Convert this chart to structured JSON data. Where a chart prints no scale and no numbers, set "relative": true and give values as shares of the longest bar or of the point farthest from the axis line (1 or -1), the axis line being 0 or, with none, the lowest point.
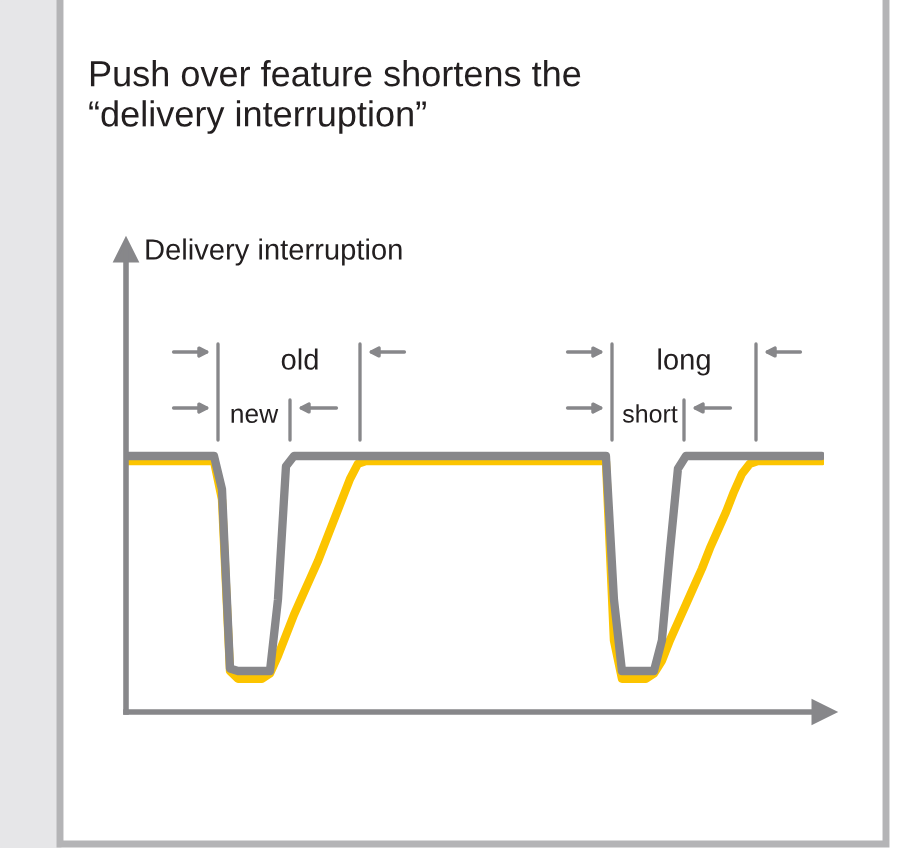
{
  "chart_data": {
    "type": "line",
    "relative": true,
    "legend": false,
    "marker": "none",
    "line_style": "solid",
    "title": "Push over feature shortens the\n“delivery interruption”",
    "annotations": [
      "Delivery interruption",
      "old",
      "new",
      "long",
      "short"
    ],
    "categories": [
      null,
      null,
      null,
      null,
      null,
      null,
      null,
      null,
      null,
      null,
      null,
      null,
      null,
      null,
      null,
      null,
      null,
      null,
      null,
      null,
      null,
      null,
      null,
      null,
      null,
      null,
      null,
      null,
      null,
      null,
      null,
      null,
      null,
      null,
      null,
      null,
      null,
      null,
      null,
      null,
      null,
      null,
      null,
      null,
      null,
      null,
      null,
      null,
      null,
      null,
      null,
      null,
      null,
      null,
      null,
      null,
      null,
      null,
      null,
      null,
      null,
      null,
      null,
      null,
      null,
      null,
      null,
      null,
      null,
      null,
      null,
      null,
      null,
      null,
      null,
      null,
      null,
      null,
      null,
      null,
      null,
      null,
      null,
      null,
      null,
      null,
      null,
      null
    ],
    "series": [
      {
        "color": "#fcc400",
        "values": [
          0.98,
          0.98,
          0.98,
          0.98,
          0.98,
          0.98,
          0.98,
          0.98,
          0.98,
          0.98,
          0.98,
          0.98,
          0.83,
          0.16,
          0.13,
          0.13,
          0.13,
          0.13,
          0.15,
          0.22,
          0.3,
          0.38,
          0.45,
          0.52,
          0.59,
          0.67,
          0.75,
          0.83,
          0.91,
          0.97,
          0.98,
          0.98,
          0.98,
          0.98,
          0.98,
          0.98,
          0.98,
          0.98,
          0.98,
          0.98,
          0.98,
          0.98,
          0.98,
          0.98,
          0.98,
          0.98,
          0.98,
          0.98,
          0.98,
          0.98,
          0.98,
          0.98,
          0.98,
          0.98,
          0.98,
          0.98,
          0.98,
          0.98,
          0.98,
          0.98,
          0.98,
          0.28,
          0.13,
          0.13,
          0.13,
          0.13,
          0.15,
          0.2,
          0.28,
          0.35,
          0.42,
          0.49,
          0.56,
          0.64,
          0.71,
          0.78,
          0.86,
          0.93,
          0.97,
          0.98,
          0.98,
          0.98,
          0.98,
          0.98,
          0.98,
          0.98,
          0.98,
          0.98
        ]
      },
      {
        "color": "#87878a",
        "values": [
          1.0,
          1.0,
          1.0,
          1.0,
          1.0,
          1.0,
          1.0,
          1.0,
          1.0,
          1.0,
          1.0,
          1.0,
          0.87,
          0.17,
          0.16,
          0.16,
          0.16,
          0.16,
          0.16,
          0.44,
          0.96,
          1.0,
          1.0,
          1.0,
          1.0,
          1.0,
          1.0,
          1.0,
          1.0,
          1.0,
          1.0,
          1.0,
          1.0,
          1.0,
          1.0,
          1.0,
          1.0,
          1.0,
          1.0,
          1.0,
          1.0,
          1.0,
          1.0,
          1.0,
          1.0,
          1.0,
          1.0,
          1.0,
          1.0,
          1.0,
          1.0,
          1.0,
          1.0,
          1.0,
          1.0,
          1.0,
          1.0,
          1.0,
          1.0,
          1.0,
          1.0,
          0.44,
          0.16,
          0.16,
          0.16,
          0.16,
          0.16,
          0.28,
          0.63,
          0.95,
          1.0,
          1.0,
          1.0,
          1.0,
          1.0,
          1.0,
          1.0,
          1.0,
          1.0,
          1.0,
          1.0,
          1.0,
          1.0,
          1.0,
          1.0,
          1.0,
          1.0,
          1.0
        ]
      }
    ]
  }
}
